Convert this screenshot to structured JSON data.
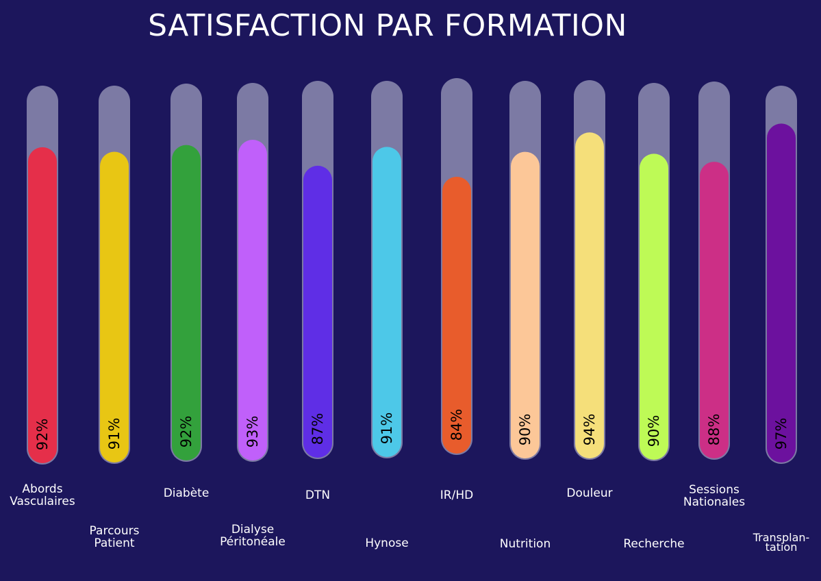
{
  "chart_data": {
    "type": "bar",
    "title": "SATISFACTION PAR FORMATION",
    "ylim": [
      0,
      100
    ],
    "grid": false,
    "categories": [
      "Abords Vasculaires",
      "Parcours Patient",
      "Diabète",
      "Dialyse Péritonéale",
      "DTN",
      "Hynose",
      "IR/HD",
      "Nutrition",
      "Douleur",
      "Recherche",
      "Sessions Nationales",
      "Transplan-tation"
    ],
    "category_lines": [
      [
        "Abords",
        "Vasculaires"
      ],
      [
        "Parcours",
        "Patient"
      ],
      [
        "Diabète"
      ],
      [
        "Dialyse",
        "Péritonéale"
      ],
      [
        "DTN"
      ],
      [
        "Hynose"
      ],
      [
        "IR/HD"
      ],
      [
        "Nutrition"
      ],
      [
        "Douleur"
      ],
      [
        "Recherche"
      ],
      [
        "Sessions",
        "Nationales"
      ],
      [
        "Transplan-",
        "tation"
      ]
    ],
    "values": [
      92,
      91,
      92,
      93,
      87,
      91,
      84,
      90,
      94,
      90,
      88,
      97
    ],
    "value_labels": [
      "92%",
      "91%",
      "92%",
      "93%",
      "87%",
      "91%",
      "84%",
      "90%",
      "94%",
      "90%",
      "88%",
      "97%"
    ],
    "colors": [
      "#e52f4a",
      "#e8c614",
      "#33a13c",
      "#c060fa",
      "#5f2ee6",
      "#4dc8e8",
      "#e85c2c",
      "#fcc798",
      "#f5df7a",
      "#befa56",
      "#cc2f86",
      "#6c119e"
    ],
    "track_color": "#7c7aa4",
    "label_text_color": "#000000"
  }
}
